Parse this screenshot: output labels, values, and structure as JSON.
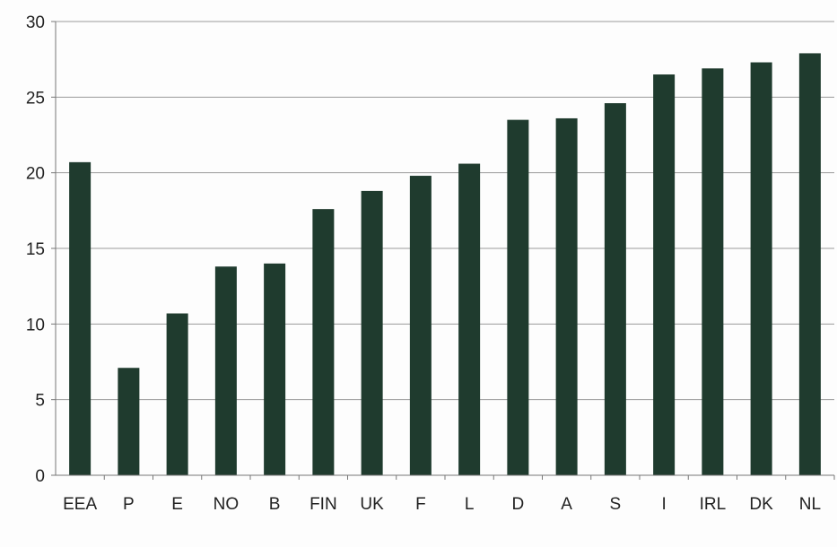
{
  "chart_data": {
    "type": "bar",
    "title": "",
    "xlabel": "",
    "ylabel": "",
    "categories": [
      "EEA",
      "P",
      "E",
      "NO",
      "B",
      "FIN",
      "UK",
      "F",
      "L",
      "D",
      "A",
      "S",
      "I",
      "IRL",
      "DK",
      "NL"
    ],
    "values": [
      20.7,
      7.1,
      10.7,
      13.8,
      14.0,
      17.6,
      18.8,
      19.8,
      20.6,
      23.5,
      23.6,
      24.6,
      26.5,
      26.9,
      27.3,
      27.9
    ],
    "ylim": [
      0,
      30
    ],
    "yticks": [
      "0",
      "5",
      "10",
      "15",
      "20",
      "25",
      "30"
    ],
    "grid": true,
    "legend": "none",
    "bar_color": "#1f3b2e"
  }
}
